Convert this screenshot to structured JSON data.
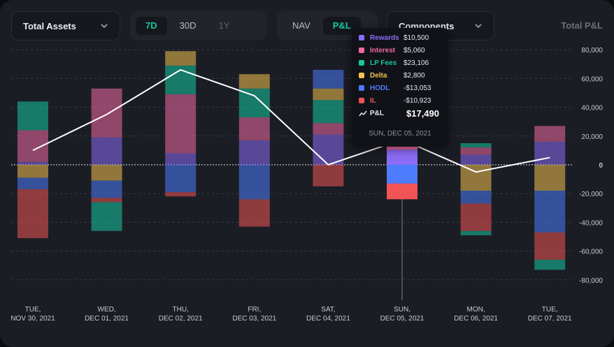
{
  "controls": {
    "metric_select": "Total Assets",
    "range_options": [
      "7D",
      "30D",
      "1Y"
    ],
    "range_active": "7D",
    "view_options": [
      "NAV",
      "P&L"
    ],
    "view_active": "P&L",
    "breakdown_select": "Components",
    "panel_title": "Total P&L"
  },
  "tooltip": {
    "rows": [
      {
        "name": "Rewards",
        "value": "$10,500",
        "color": "#8b6cf6"
      },
      {
        "name": "Interest",
        "value": "$5,060",
        "color": "#f06aa3"
      },
      {
        "name": "LP Fees",
        "value": "$23,106",
        "color": "#16c7a0"
      },
      {
        "name": "Delta",
        "value": "$2,800",
        "color": "#f2c14e"
      },
      {
        "name": "HODL",
        "value": "-$13,053",
        "color": "#4d7cfe"
      },
      {
        "name": "IL",
        "value": "-$10,923",
        "color": "#f05454"
      }
    ],
    "pl_label": "P&L",
    "pl_value": "$17,490",
    "date": "SUN, DEC 05, 2021"
  },
  "chart_data": {
    "type": "bar",
    "stacked": true,
    "categories": [
      [
        "TUE,",
        "NOV 30, 2021"
      ],
      [
        "WED,",
        "DEC 01, 2021"
      ],
      [
        "THU,",
        "DEC 02, 2021"
      ],
      [
        "FRI,",
        "DEC 03, 2021"
      ],
      [
        "SAT,",
        "DEC 04, 2021"
      ],
      [
        "SUN,",
        "DEC 05, 2021"
      ],
      [
        "MON,",
        "DEC 06, 2021"
      ],
      [
        "TUE,",
        "DEC 07, 2021"
      ]
    ],
    "series": [
      {
        "name": "Rewards",
        "color": "#8b6cf6",
        "values": [
          2000,
          19000,
          8000,
          17000,
          21000,
          10500,
          7000,
          16000
        ]
      },
      {
        "name": "Interest",
        "color": "#f06aa3",
        "values": [
          22000,
          34000,
          41000,
          16000,
          8000,
          5060,
          5000,
          11000
        ]
      },
      {
        "name": "LP Fees",
        "color": "#16c7a0",
        "values": [
          20000,
          0,
          20000,
          20000,
          16000,
          23106,
          3000,
          0
        ]
      },
      {
        "name": "Delta",
        "color": "#f2c14e",
        "values": [
          -9000,
          -11000,
          10000,
          10000,
          8000,
          2800,
          -18000,
          -18000
        ]
      },
      {
        "name": "HODL",
        "color": "#4d7cfe",
        "values": [
          -8000,
          -12000,
          -19000,
          -24000,
          13000,
          -13053,
          -9000,
          -29000
        ]
      },
      {
        "name": "IL",
        "color": "#f05454",
        "values": [
          -34000,
          -3000,
          -3000,
          -19000,
          -15000,
          -10923,
          -19000,
          -19000
        ]
      },
      {
        "name": "LP Fees (negative)",
        "color": "#16c7a0",
        "values": [
          0,
          -20000,
          0,
          0,
          0,
          0,
          -3000,
          -7000
        ]
      }
    ],
    "pnl_line": [
      10000,
      35000,
      66000,
      48000,
      0,
      17490,
      -5000,
      5000
    ],
    "yticks": [
      "80,000",
      "60,000",
      "40,000",
      "20,000",
      "0",
      "-20,000",
      "-40,000",
      "-60,000",
      "-80,000"
    ],
    "ylim": [
      -90000,
      80000
    ],
    "highlight_index": 5
  }
}
